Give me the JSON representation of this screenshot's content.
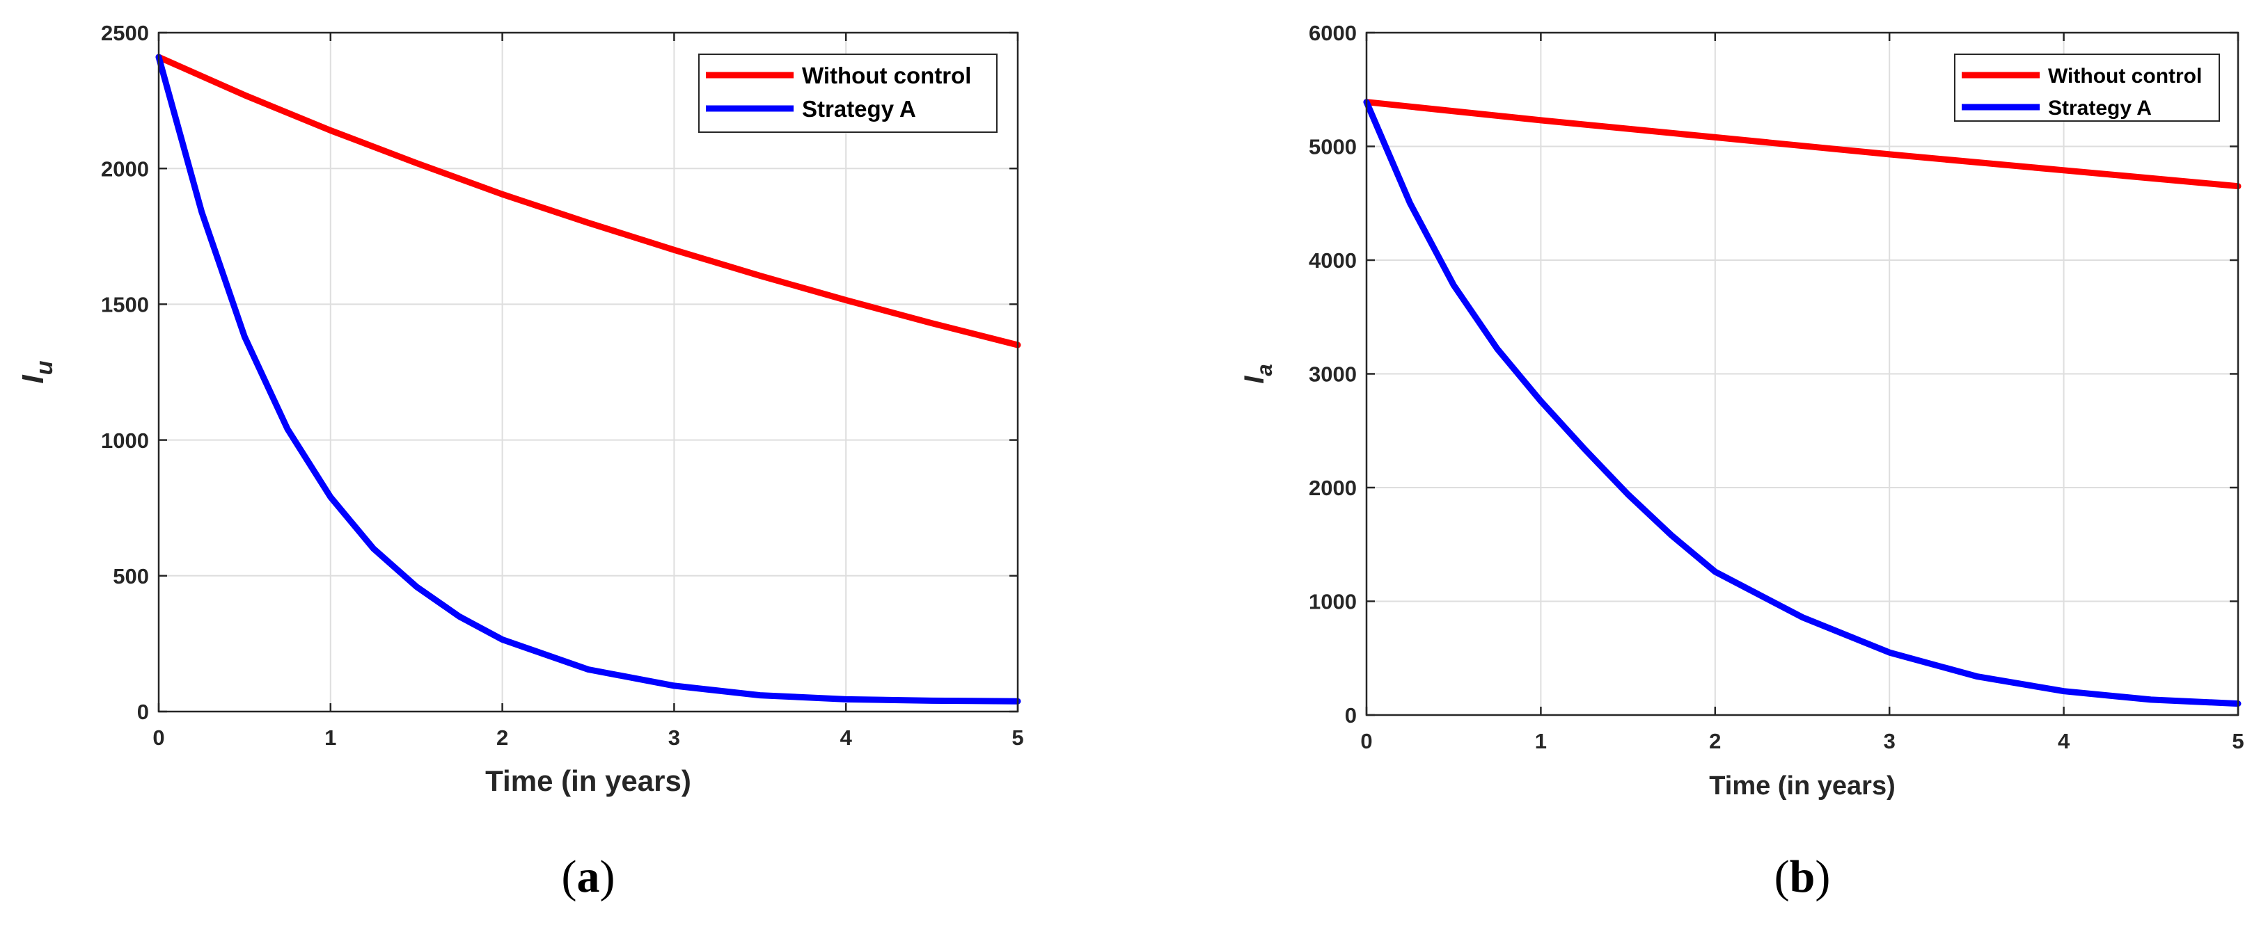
{
  "chart_data": [
    {
      "type": "line",
      "xlabel": "Time (in years)",
      "ylabel": "I",
      "ylabel_sub": "u",
      "xlim": [
        0,
        5
      ],
      "ylim": [
        0,
        2500
      ],
      "xticks": [
        0,
        1,
        2,
        3,
        4,
        5
      ],
      "yticks": [
        0,
        500,
        1000,
        1500,
        2000,
        2500
      ],
      "grid": true,
      "legend_position": "top-right",
      "caption_letter": "a",
      "series": [
        {
          "name": "Without control",
          "color": "#ff0000",
          "x": [
            0,
            0.5,
            1,
            1.5,
            2,
            2.5,
            3,
            3.5,
            4,
            4.5,
            5
          ],
          "values": [
            2410,
            2270,
            2140,
            2020,
            1905,
            1800,
            1700,
            1605,
            1515,
            1430,
            1350
          ]
        },
        {
          "name": "Strategy A",
          "color": "#0000ff",
          "x": [
            0,
            0.25,
            0.5,
            0.75,
            1,
            1.25,
            1.5,
            1.75,
            2,
            2.5,
            3,
            3.5,
            4,
            4.5,
            5
          ],
          "values": [
            2410,
            1840,
            1380,
            1040,
            790,
            600,
            460,
            350,
            265,
            155,
            95,
            60,
            45,
            40,
            38
          ]
        }
      ]
    },
    {
      "type": "line",
      "xlabel": "Time (in years)",
      "ylabel": "I",
      "ylabel_sub": "a",
      "xlim": [
        0,
        5
      ],
      "ylim": [
        0,
        6000
      ],
      "xticks": [
        0,
        1,
        2,
        3,
        4,
        5
      ],
      "yticks": [
        0,
        1000,
        2000,
        3000,
        4000,
        5000,
        6000
      ],
      "grid": true,
      "legend_position": "top-right",
      "caption_letter": "b",
      "series": [
        {
          "name": "Without control",
          "color": "#ff0000",
          "x": [
            0,
            1,
            2,
            3,
            4,
            5
          ],
          "values": [
            5390,
            5230,
            5080,
            4930,
            4790,
            4650
          ]
        },
        {
          "name": "Strategy A",
          "color": "#0000ff",
          "x": [
            0,
            0.25,
            0.5,
            0.75,
            1,
            1.25,
            1.5,
            1.75,
            2,
            2.5,
            3,
            3.5,
            4,
            4.5,
            5
          ],
          "values": [
            5390,
            4500,
            3780,
            3220,
            2760,
            2340,
            1940,
            1580,
            1260,
            860,
            550,
            340,
            210,
            135,
            100
          ]
        }
      ]
    }
  ]
}
